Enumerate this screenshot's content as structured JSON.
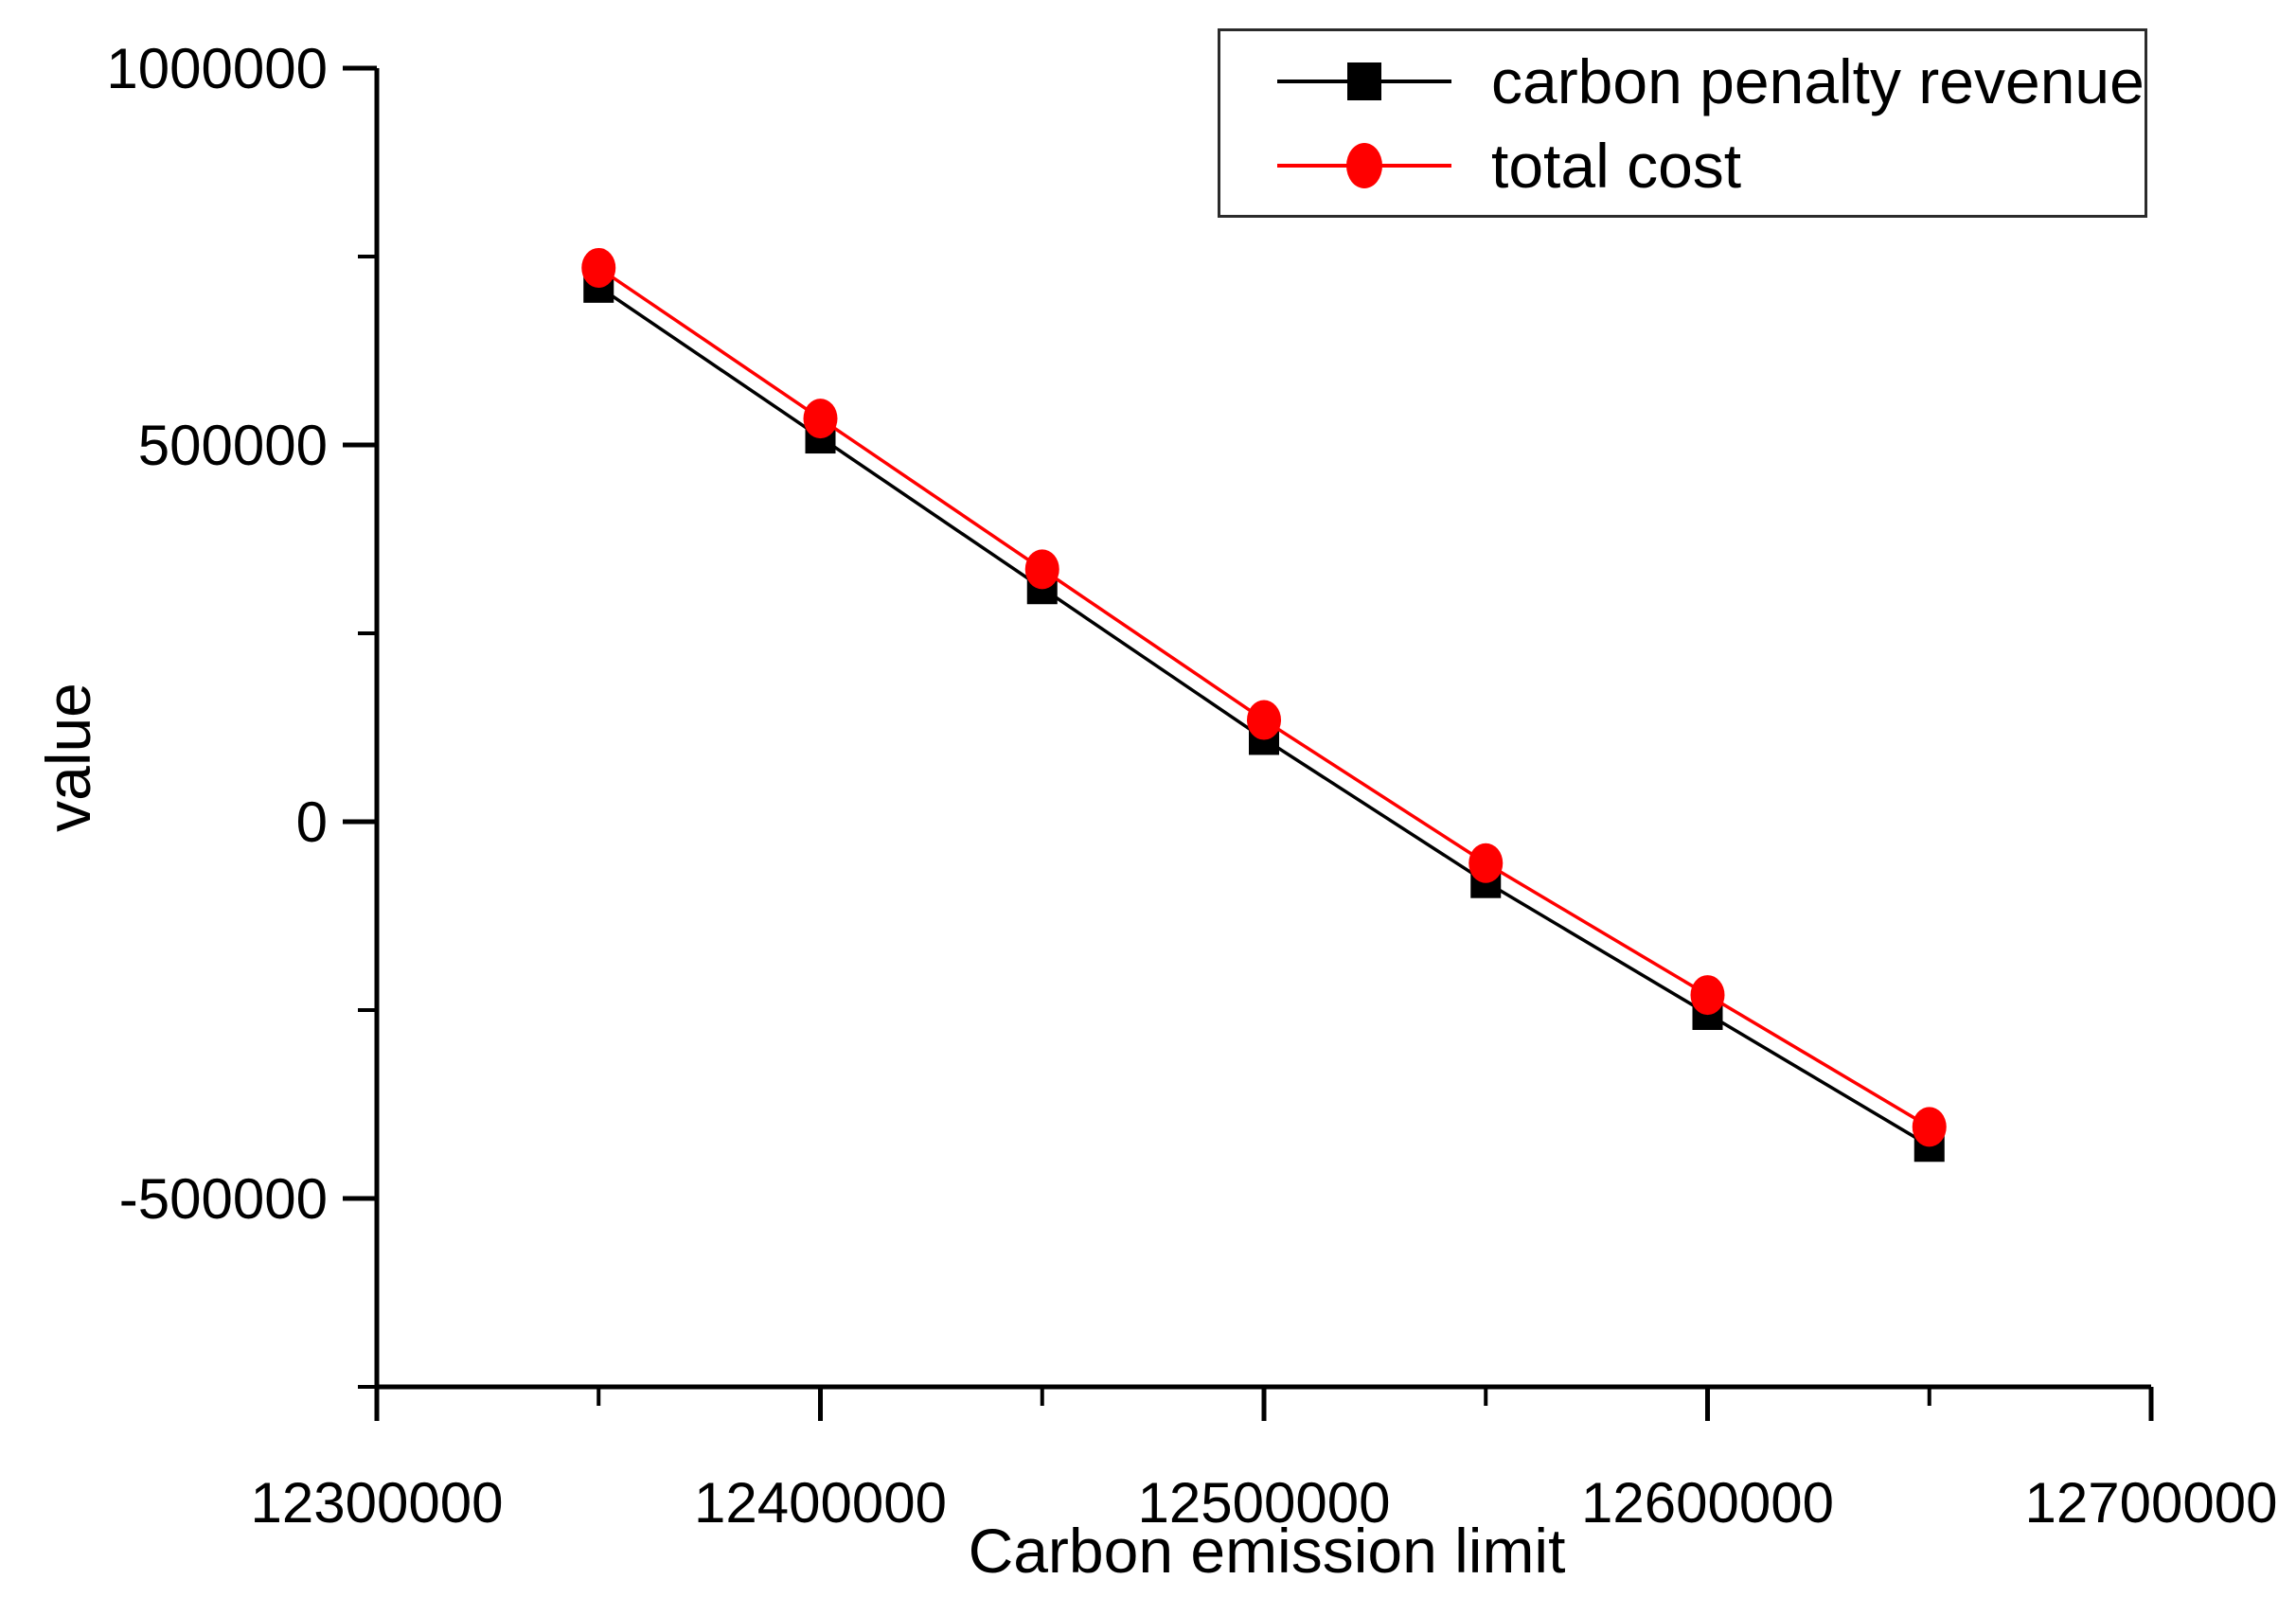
{
  "chart_data": {
    "type": "line",
    "title": "",
    "xlabel": "Carbon emission limit",
    "ylabel": "value",
    "x": [
      12350000,
      12400000,
      12450000,
      12500000,
      12550000,
      12600000,
      12650000
    ],
    "series": [
      {
        "name": "carbon penalty revenue",
        "color": "#000000",
        "marker": "square",
        "values": [
          710000,
          510000,
          310000,
          110000,
          -80000,
          -255000,
          -430000
        ]
      },
      {
        "name": "total cost",
        "color": "#ff0000",
        "marker": "circle",
        "values": [
          735000,
          535000,
          335000,
          135000,
          -55000,
          -230000,
          -405000
        ]
      }
    ],
    "xlim": [
      12300000,
      12700000
    ],
    "ylim": [
      -750000,
      1000000
    ],
    "x_major_ticks": [
      12300000,
      12400000,
      12500000,
      12600000,
      12700000
    ],
    "x_major_tick_labels": [
      "12300000",
      "12400000",
      "12500000",
      "12600000",
      "12700000"
    ],
    "x_minor_ticks": [
      12350000,
      12450000,
      12550000,
      12650000
    ],
    "y_major_ticks": [
      1000000,
      500000,
      0,
      -500000
    ],
    "y_major_tick_labels": [
      "1000000",
      "500000",
      "0",
      "-500000"
    ],
    "y_minor_ticks": [
      750000,
      250000,
      -250000,
      -750000
    ],
    "grid": false,
    "legend_position": "top-right",
    "axis_color": "#000000"
  },
  "legend": {
    "items": [
      {
        "label": "carbon penalty revenue"
      },
      {
        "label": "total cost"
      }
    ]
  }
}
